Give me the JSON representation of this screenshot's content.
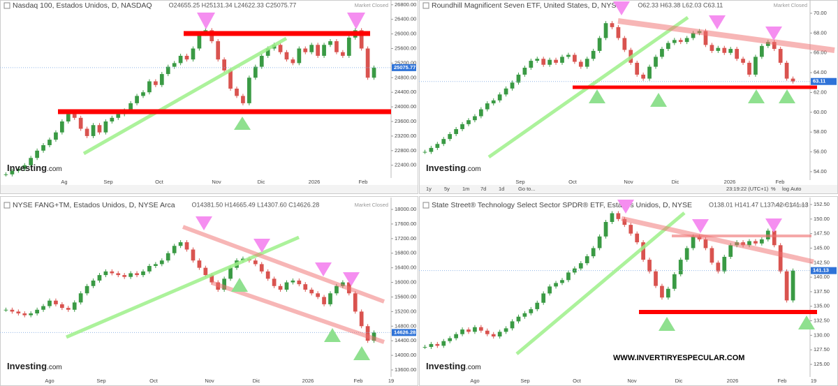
{
  "chart_data": [
    {
      "type": "candlestick",
      "title": "Nasdaq 100, Estados Unidos, D, NASDAQ",
      "ohlc": "O24655.25 H25131.34 L24622.33 C25075.77",
      "status": "Market Closed",
      "price_label": "25075.77",
      "up_color": "#3a9a44",
      "down_color": "#d9534f",
      "values": [
        22150,
        22250,
        22300,
        22400,
        22600,
        22800,
        22950,
        23100,
        23300,
        23600,
        23800,
        23700,
        23400,
        23200,
        23500,
        23300,
        23600,
        23700,
        23800,
        23900,
        24100,
        24300,
        24400,
        24700,
        24600,
        24900,
        25100,
        25200,
        25400,
        25300,
        25600,
        26000,
        26100,
        25800,
        25300,
        25000,
        24500,
        24300,
        24100,
        24800,
        25100,
        25400,
        25600,
        25700,
        25500,
        25300,
        25200,
        25600,
        25500,
        25700,
        25400,
        25700,
        25800,
        25500,
        25400,
        25900,
        26100,
        25600,
        24800,
        25075.77
      ],
      "ylim": [
        22050,
        26930
      ],
      "yticks": [
        {
          "value": 22400,
          "label": "22400.00"
        },
        {
          "value": 22800,
          "label": "22800.00"
        },
        {
          "value": 23200,
          "label": "23200.00"
        },
        {
          "value": 23600,
          "label": "23600.00"
        },
        {
          "value": 24000,
          "label": "24000.00"
        },
        {
          "value": 24400,
          "label": "24400.00"
        },
        {
          "value": 24800,
          "label": "24800.00"
        },
        {
          "value": 25200,
          "label": "25200.00"
        },
        {
          "value": 25600,
          "label": "25600.00"
        },
        {
          "value": 26000,
          "label": "26000.00"
        },
        {
          "value": 26400,
          "label": "26400.00"
        },
        {
          "value": 26800,
          "label": "26800.00"
        }
      ],
      "x_labels": [
        "Ag",
        "Sep",
        "Oct",
        "Nov",
        "Dic",
        "2026",
        "Feb"
      ]
    },
    {
      "type": "candlestick",
      "title": "Roundhill Magnificent Seven ETF, United States, D, NYSE",
      "ohlc": "O62.33 H63.38 L62.03 C63.11",
      "status": "Market Closed",
      "price_label": "63.11",
      "up_color": "#3a9a44",
      "down_color": "#d9534f",
      "values": [
        56.0,
        56.4,
        56.8,
        57.3,
        57.8,
        58.3,
        58.8,
        59.2,
        59.6,
        60.3,
        60.9,
        61.2,
        61.8,
        62.4,
        63.0,
        63.8,
        64.5,
        65.2,
        65.4,
        64.8,
        65.3,
        65.0,
        65.6,
        65.8,
        65.1,
        64.6,
        65.4,
        66.2,
        67.5,
        69.0,
        68.6,
        67.5,
        66.3,
        65.0,
        63.8,
        63.4,
        64.6,
        65.6,
        66.4,
        67.0,
        67.3,
        67.1,
        67.5,
        68.0,
        68.2,
        66.8,
        66.2,
        66.5,
        66.0,
        66.4,
        65.4,
        65.0,
        63.8,
        65.6,
        66.7,
        67.1,
        66.4,
        65.0,
        63.4,
        63.11
      ],
      "ylim": [
        53.15,
        71.34
      ],
      "yticks": [
        {
          "value": 54,
          "label": "54.00"
        },
        {
          "value": 56,
          "label": "56.00"
        },
        {
          "value": 58,
          "label": "58.00"
        },
        {
          "value": 60,
          "label": "60.00"
        },
        {
          "value": 62,
          "label": "62.00"
        },
        {
          "value": 64,
          "label": "64.00"
        },
        {
          "value": 66,
          "label": "66.00"
        },
        {
          "value": 68,
          "label": "68.00"
        },
        {
          "value": 70,
          "label": "70.00"
        }
      ],
      "x_labels": [
        "Sep",
        "Oct",
        "Nov",
        "Dic",
        "2026",
        "Feb"
      ]
    },
    {
      "type": "candlestick",
      "title": "NYSE FANG+TM, Estados Unidos, D, NYSE Arca",
      "ohlc": "O14381.50 H14665.49 L14307.60 C14626.28",
      "status": "Market Closed",
      "price_label": "14626.28",
      "up_color": "#3a9a44",
      "down_color": "#d9534f",
      "values": [
        15250,
        15200,
        15150,
        15100,
        15150,
        15250,
        15350,
        15500,
        15400,
        15300,
        15250,
        15450,
        15700,
        15900,
        16050,
        16200,
        16300,
        16250,
        16200,
        16150,
        16250,
        16200,
        16300,
        16450,
        16500,
        16600,
        16800,
        17000,
        17100,
        16900,
        16600,
        16400,
        16200,
        16000,
        15800,
        16100,
        16400,
        16600,
        16650,
        16600,
        16500,
        16300,
        16100,
        15900,
        15800,
        16000,
        16050,
        15950,
        15800,
        15700,
        15600,
        15400,
        15700,
        15900,
        16000,
        15700,
        15200,
        14800,
        14400,
        14626.28
      ],
      "ylim": [
        13409,
        18325
      ],
      "yticks": [
        {
          "value": 13600,
          "label": "13600.00"
        },
        {
          "value": 14000,
          "label": "14000.00"
        },
        {
          "value": 14400,
          "label": "14400.00"
        },
        {
          "value": 14800,
          "label": "14800.00"
        },
        {
          "value": 15200,
          "label": "15200.00"
        },
        {
          "value": 15600,
          "label": "15600.00"
        },
        {
          "value": 16000,
          "label": "16000.00"
        },
        {
          "value": 16400,
          "label": "16400.00"
        },
        {
          "value": 16800,
          "label": "16800.00"
        },
        {
          "value": 17200,
          "label": "17200.00"
        },
        {
          "value": 17600,
          "label": "17600.00"
        },
        {
          "value": 18000,
          "label": "18000.00"
        }
      ],
      "x_labels": [
        "Ago",
        "Sep",
        "Oct",
        "Nov",
        "Dic",
        "2026",
        "Feb",
        "19"
      ]
    },
    {
      "type": "candlestick",
      "title": "State Street® Technology Select Sector SPDR® ETF, Estados Unidos, D, NYSE",
      "ohlc": "O138.01 H141.47 L137.42 C141.13",
      "status": "Market Closed",
      "price_label": "141.13",
      "up_color": "#3a9a44",
      "down_color": "#d9534f",
      "values": [
        128.0,
        128.5,
        128.2,
        129.0,
        129.5,
        130.2,
        131.0,
        130.6,
        131.4,
        130.8,
        130.2,
        129.8,
        130.6,
        131.2,
        132.4,
        133.2,
        133.8,
        134.5,
        135.6,
        137.2,
        138.4,
        139.0,
        139.5,
        140.8,
        141.5,
        142.4,
        143.6,
        145.0,
        147.0,
        149.5,
        151.0,
        150.0,
        149.0,
        147.5,
        146.0,
        143.0,
        141.0,
        138.5,
        136.5,
        138.0,
        140.5,
        143.0,
        145.0,
        147.0,
        146.5,
        145.0,
        142.5,
        141.0,
        143.5,
        145.5,
        146.0,
        145.5,
        146.2,
        145.8,
        146.5,
        148.0,
        145.5,
        141.0,
        136.0,
        141.13
      ],
      "ylim": [
        122.84,
        153.7
      ],
      "yticks": [
        {
          "value": 125,
          "label": "125.00"
        },
        {
          "value": 127.5,
          "label": "127.50"
        },
        {
          "value": 130,
          "label": "130.00"
        },
        {
          "value": 132.5,
          "label": "132.50"
        },
        {
          "value": 135,
          "label": "135.00"
        },
        {
          "value": 137.5,
          "label": "137.50"
        },
        {
          "value": 140,
          "label": "140.00"
        },
        {
          "value": 142.5,
          "label": "142.50"
        },
        {
          "value": 145,
          "label": "145.00"
        },
        {
          "value": 147.5,
          "label": "147.50"
        },
        {
          "value": 150,
          "label": "150.00"
        },
        {
          "value": 152.5,
          "label": "152.50"
        }
      ],
      "x_labels": [
        "Ago",
        "Sep",
        "Oct",
        "Nov",
        "Dic",
        "2026",
        "Feb",
        "19"
      ]
    }
  ],
  "logo_main": "Investing",
  "logo_suffix": ".com",
  "website": "WWW.INVERTIRYESPECULAR.COM",
  "toolbar": {
    "ranges": [
      "1y",
      "5y",
      "1m",
      "7d",
      "1d"
    ],
    "goto": "Go to...",
    "time": "23:19:22 (UTC+1)",
    "options": [
      "%",
      "log",
      "Auto"
    ]
  }
}
